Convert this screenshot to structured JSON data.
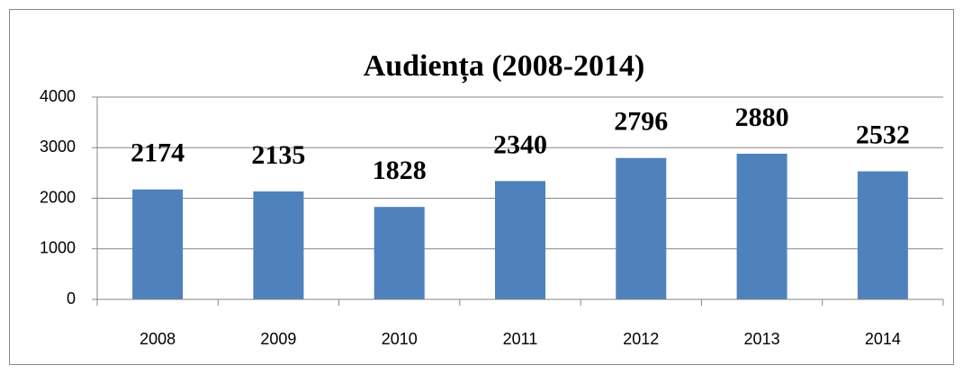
{
  "chart_data": {
    "type": "bar",
    "title": "Audiența (2008-2014)",
    "categories": [
      "2008",
      "2009",
      "2010",
      "2011",
      "2012",
      "2013",
      "2014"
    ],
    "values": [
      2174,
      2135,
      1828,
      2340,
      2796,
      2880,
      2532
    ],
    "color": "#4f81bd",
    "ylim": [
      0,
      4000
    ],
    "yticks": [
      0,
      1000,
      2000,
      3000,
      4000
    ],
    "grid": true
  }
}
